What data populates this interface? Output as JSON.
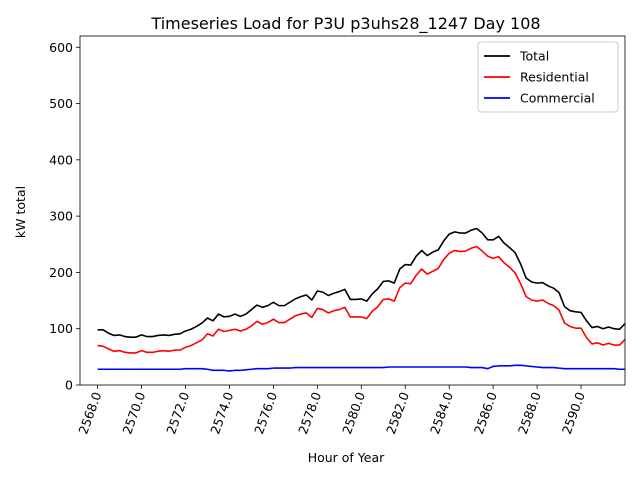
{
  "chart_data": {
    "type": "line",
    "title": "Timeseries Load for P3U p3uhs28_1247  Day 108",
    "xlabel": "Hour of Year",
    "ylabel": "kW total",
    "xlim": [
      2567.2,
      2592.0
    ],
    "ylim": [
      0,
      620
    ],
    "x_ticks": [
      2568,
      2570,
      2572,
      2574,
      2576,
      2578,
      2580,
      2582,
      2584,
      2586,
      2588,
      2590
    ],
    "x_tick_labels": [
      "2568.0",
      "2570.0",
      "2572.0",
      "2574.0",
      "2576.0",
      "2578.0",
      "2580.0",
      "2582.0",
      "2584.0",
      "2586.0",
      "2588.0",
      "2590.0"
    ],
    "y_ticks": [
      0,
      100,
      200,
      300,
      400,
      500,
      600
    ],
    "y_tick_labels": [
      "0",
      "100",
      "200",
      "300",
      "400",
      "500",
      "600"
    ],
    "legend_position": "top-right",
    "x_start": 2568.0,
    "x_step": 0.25,
    "series": [
      {
        "name": "Total",
        "color": "#000000",
        "values": [
          98,
          98,
          92,
          88,
          89,
          86,
          85,
          85,
          89,
          86,
          86,
          88,
          89,
          88,
          90,
          91,
          96,
          99,
          104,
          110,
          119,
          114,
          126,
          121,
          122,
          126,
          122,
          126,
          134,
          142,
          138,
          141,
          147,
          141,
          141,
          147,
          153,
          157,
          160,
          151,
          167,
          165,
          159,
          163,
          166,
          170,
          152,
          152,
          153,
          149,
          162,
          171,
          184,
          185,
          181,
          206,
          214,
          213,
          229,
          239,
          230,
          236,
          240,
          256,
          268,
          272,
          270,
          270,
          275,
          278,
          270,
          258,
          258,
          264,
          252,
          244,
          235,
          215,
          190,
          183,
          181,
          182,
          176,
          172,
          164,
          139,
          132,
          130,
          129,
          114,
          102,
          104,
          100,
          103,
          100,
          99,
          109
        ]
      },
      {
        "name": "Residential",
        "color": "#ff0000",
        "values": [
          70,
          69,
          64,
          60,
          61,
          58,
          57,
          57,
          61,
          58,
          58,
          60,
          61,
          60,
          62,
          62,
          67,
          70,
          75,
          80,
          91,
          87,
          99,
          95,
          97,
          99,
          96,
          99,
          105,
          113,
          108,
          111,
          117,
          111,
          111,
          117,
          123,
          126,
          128,
          120,
          136,
          134,
          128,
          132,
          134,
          138,
          121,
          121,
          121,
          118,
          131,
          139,
          152,
          153,
          149,
          173,
          181,
          180,
          195,
          206,
          197,
          202,
          207,
          223,
          234,
          239,
          237,
          238,
          243,
          246,
          238,
          229,
          225,
          228,
          217,
          209,
          199,
          180,
          157,
          151,
          149,
          151,
          145,
          141,
          133,
          110,
          104,
          101,
          101,
          84,
          73,
          75,
          71,
          74,
          71,
          71,
          81
        ]
      },
      {
        "name": "Commercial",
        "color": "#0000ff",
        "values": [
          28,
          28,
          28,
          28,
          28,
          28,
          28,
          28,
          28,
          28,
          28,
          28,
          28,
          28,
          28,
          28,
          29,
          29,
          29,
          29,
          28,
          26,
          26,
          26,
          25,
          26,
          26,
          27,
          28,
          29,
          29,
          29,
          30,
          30,
          30,
          30,
          31,
          31,
          31,
          31,
          31,
          31,
          31,
          31,
          31,
          31,
          31,
          31,
          31,
          31,
          31,
          31,
          31,
          32,
          32,
          32,
          32,
          32,
          32,
          32,
          32,
          32,
          32,
          32,
          32,
          32,
          32,
          32,
          31,
          31,
          31,
          29,
          33,
          34,
          34,
          34,
          35,
          35,
          34,
          33,
          32,
          31,
          31,
          31,
          30,
          29,
          29,
          29,
          29,
          29,
          29,
          29,
          29,
          29,
          29,
          28,
          28
        ]
      }
    ]
  }
}
